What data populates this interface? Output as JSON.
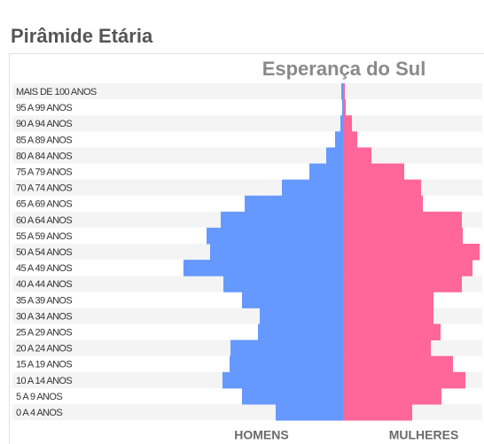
{
  "chart_data": {
    "type": "pyramid",
    "title": "Pirâmide Etária",
    "subtitle": "Esperança do Sul",
    "categories": [
      "MAIS DE 100 ANOS",
      "95 A 99 ANOS",
      "90 A 94 ANOS",
      "85 A 89 ANOS",
      "80 A 84 ANOS",
      "75 A 79 ANOS",
      "70 A 74 ANOS",
      "65 A 69 ANOS",
      "60 A 64 ANOS",
      "55 A 59 ANOS",
      "50 A 54 ANOS",
      "45 A 49 ANOS",
      "40 A 44 ANOS",
      "35 A 39 ANOS",
      "30 A 34 ANOS",
      "25 A 29 ANOS",
      "20 A 24 ANOS",
      "15 A 19 ANOS",
      "10 A 14 ANOS",
      "5 A 9 ANOS",
      "0 A 4 ANOS"
    ],
    "series": [
      {
        "name": "HOMENS",
        "color": "#6699ff",
        "values": [
          2,
          1,
          3,
          9,
          19,
          38,
          69,
          111,
          138,
          154,
          150,
          180,
          135,
          114,
          94,
          96,
          127,
          128,
          136,
          114,
          76
        ]
      },
      {
        "name": "MULHERES",
        "color": "#ff6699",
        "values": [
          2,
          3,
          10,
          16,
          32,
          69,
          88,
          90,
          134,
          135,
          154,
          146,
          134,
          102,
          102,
          110,
          99,
          124,
          138,
          111,
          78
        ]
      }
    ]
  }
}
